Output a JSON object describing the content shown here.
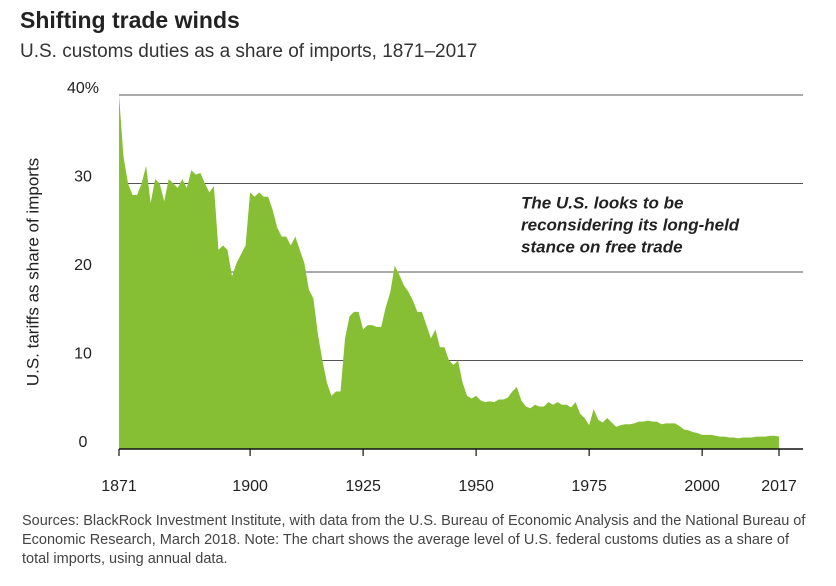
{
  "chart_data": {
    "type": "area",
    "title": "Shifting trade winds",
    "subtitle": "U.S. customs duties as a share of imports, 1871–2017",
    "y_label": "U.S. tariffs as share of imports",
    "annotation": [
      "The U.S. looks to be",
      "reconsidering its long-held",
      "stance on free trade"
    ],
    "source": "Sources: BlackRock Investment Institute, with data from the U.S. Bureau of Economic Analysis and the National Bureau of Economic Research, March 2018. Note: The chart shows the average level of U.S. federal customs duties as a share of total imports, using annual data.",
    "x": [
      1871,
      1872,
      1873,
      1874,
      1875,
      1876,
      1877,
      1878,
      1879,
      1880,
      1881,
      1882,
      1883,
      1884,
      1885,
      1886,
      1887,
      1888,
      1889,
      1890,
      1891,
      1892,
      1893,
      1894,
      1895,
      1896,
      1897,
      1898,
      1899,
      1900,
      1901,
      1902,
      1903,
      1904,
      1905,
      1906,
      1907,
      1908,
      1909,
      1910,
      1911,
      1912,
      1913,
      1914,
      1915,
      1916,
      1917,
      1918,
      1919,
      1920,
      1921,
      1922,
      1923,
      1924,
      1925,
      1926,
      1927,
      1928,
      1929,
      1930,
      1931,
      1932,
      1933,
      1934,
      1935,
      1936,
      1937,
      1938,
      1939,
      1940,
      1941,
      1942,
      1943,
      1944,
      1945,
      1946,
      1947,
      1948,
      1949,
      1950,
      1951,
      1952,
      1953,
      1954,
      1955,
      1956,
      1957,
      1958,
      1959,
      1960,
      1961,
      1962,
      1963,
      1964,
      1965,
      1966,
      1967,
      1968,
      1969,
      1970,
      1971,
      1972,
      1973,
      1974,
      1975,
      1976,
      1977,
      1978,
      1979,
      1980,
      1981,
      1982,
      1983,
      1984,
      1985,
      1986,
      1987,
      1988,
      1989,
      1990,
      1991,
      1992,
      1993,
      1994,
      1995,
      1996,
      1997,
      1998,
      1999,
      2000,
      2001,
      2002,
      2003,
      2004,
      2005,
      2006,
      2007,
      2008,
      2009,
      2010,
      2011,
      2012,
      2013,
      2014,
      2015,
      2016,
      2017
    ],
    "series": [
      {
        "color": "#86bf34",
        "values": [
          40,
          33,
          30,
          28.7,
          28.7,
          30,
          32,
          27.8,
          30.5,
          30,
          28,
          30.5,
          30,
          29.5,
          30.5,
          29.5,
          31.5,
          31,
          31.2,
          30,
          29,
          29.7,
          22.5,
          23,
          22.5,
          19.5,
          21,
          22,
          23,
          29,
          28.5,
          29,
          28.5,
          28.5,
          27,
          25,
          24,
          24,
          23,
          24,
          22.5,
          21,
          18,
          17,
          13,
          10,
          7.5,
          6,
          6.5,
          6.5,
          12.5,
          15,
          15.5,
          15.5,
          13.5,
          14,
          14,
          13.8,
          13.8,
          16,
          17.7,
          20.7,
          19.7,
          18.5,
          17.8,
          16.8,
          15.5,
          15.5,
          14,
          12.5,
          13.5,
          11.5,
          11.5,
          10,
          9.5,
          10,
          7.5,
          6,
          5.7,
          6,
          5.5,
          5.3,
          5.4,
          5.3,
          5.6,
          5.6,
          5.8,
          6.5,
          7,
          5.5,
          4.8,
          4.6,
          5,
          4.8,
          4.8,
          5.3,
          5,
          5.3,
          5,
          5,
          4.7,
          5.3,
          4,
          3.5,
          2.7,
          4.5,
          3.3,
          3,
          3.5,
          3,
          2.5,
          2.7,
          2.8,
          2.8,
          2.9,
          3.1,
          3.1,
          3.2,
          3.1,
          3.1,
          2.8,
          2.9,
          2.9,
          2.9,
          2.6,
          2.2,
          2.1,
          1.9,
          1.8,
          1.6,
          1.6,
          1.6,
          1.5,
          1.4,
          1.4,
          1.3,
          1.3,
          1.2,
          1.3,
          1.3,
          1.3,
          1.4,
          1.4,
          1.4,
          1.5,
          1.5,
          1.4
        ]
      }
    ],
    "xlim": [
      1871,
      2017
    ],
    "xticks": [
      1871,
      1900,
      1925,
      1950,
      1975,
      2000,
      2017
    ],
    "ylim": [
      0,
      40
    ],
    "yticks": [
      0,
      10,
      20,
      30,
      {
        "value": 40,
        "label": "40%"
      }
    ],
    "grid": true
  }
}
